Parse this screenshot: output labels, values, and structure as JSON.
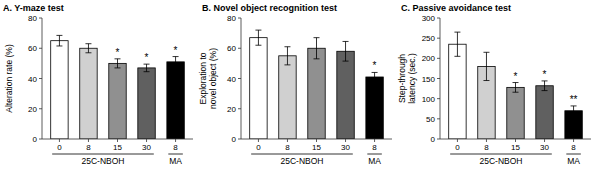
{
  "chart_data": [
    {
      "type": "bar",
      "title": "A. Y-maze test",
      "ylabel": "Alteration rate (%)",
      "categories": [
        "0",
        "8",
        "15",
        "30",
        "8"
      ],
      "values": [
        65,
        60,
        50,
        47,
        51
      ],
      "errors": [
        3.5,
        3.0,
        3.0,
        2.5,
        3.5
      ],
      "colors": [
        "#ffffff",
        "#d0d0d0",
        "#909090",
        "#606060",
        "#000000"
      ],
      "annotations": [
        null,
        null,
        "*",
        "*",
        "*"
      ],
      "groups": [
        {
          "label": "25C-NBOH",
          "size": 4
        },
        {
          "label": "MA",
          "size": 1
        }
      ],
      "ylim": [
        0,
        80
      ],
      "yticks": [
        0,
        20,
        40,
        60,
        80
      ],
      "grid": false
    },
    {
      "type": "bar",
      "title": "B. Novel object recognition test",
      "ylabel": "Exploration to\nnovel object (%)",
      "categories": [
        "0",
        "8",
        "15",
        "30",
        "8"
      ],
      "values": [
        67,
        55,
        60,
        58,
        41
      ],
      "errors": [
        5.0,
        6.0,
        7.0,
        6.5,
        3.0
      ],
      "colors": [
        "#ffffff",
        "#d0d0d0",
        "#909090",
        "#606060",
        "#000000"
      ],
      "annotations": [
        null,
        null,
        null,
        null,
        "*"
      ],
      "groups": [
        {
          "label": "25C-NBOH",
          "size": 4
        },
        {
          "label": "MA",
          "size": 1
        }
      ],
      "ylim": [
        0,
        80
      ],
      "yticks": [
        0,
        20,
        40,
        60,
        80
      ],
      "grid": false
    },
    {
      "type": "bar",
      "title": "C. Passive avoidance test",
      "ylabel": "Step-through\nlatency (sec.)",
      "categories": [
        "0",
        "8",
        "15",
        "30",
        "8"
      ],
      "values": [
        235,
        180,
        128,
        132,
        70
      ],
      "errors": [
        30,
        35,
        12,
        12,
        12
      ],
      "colors": [
        "#ffffff",
        "#d0d0d0",
        "#909090",
        "#606060",
        "#000000"
      ],
      "annotations": [
        null,
        null,
        "*",
        "*",
        "**"
      ],
      "groups": [
        {
          "label": "25C-NBOH",
          "size": 4
        },
        {
          "label": "MA",
          "size": 1
        }
      ],
      "ylim": [
        0,
        300
      ],
      "yticks": [
        0,
        50,
        100,
        150,
        200,
        250,
        300
      ],
      "grid": false
    }
  ]
}
